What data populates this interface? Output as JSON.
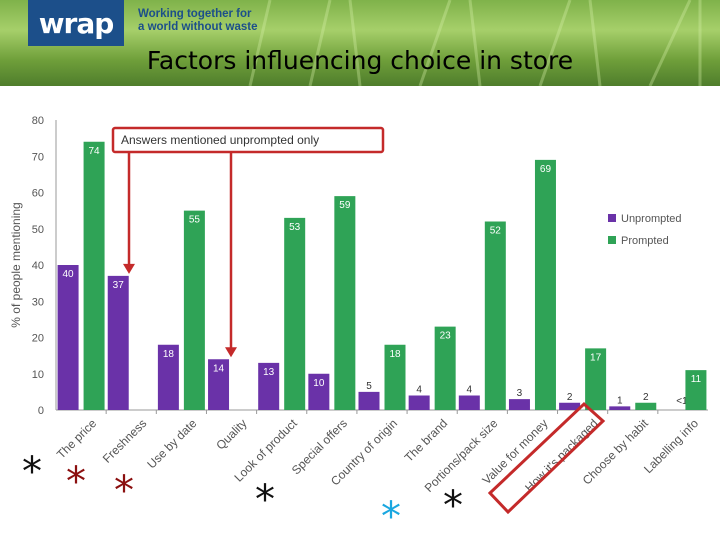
{
  "header": {
    "logo_text": "wrap",
    "tagline_line1": "Working together for",
    "tagline_line2": "a world without waste",
    "slide_title": "Factors influencing choice in store"
  },
  "colors": {
    "unprompted": "#6a32a8",
    "prompted": "#2fa356",
    "annotation_red": "#c42a2a",
    "asterisk_dark": "#111111",
    "asterisk_red": "#8b0f0f",
    "asterisk_cyan": "#1aa7e0",
    "brand_blue": "#1c4f8a"
  },
  "annotation": {
    "callout_text": "Answers mentioned unprompted only"
  },
  "asterisk_glyph": "*",
  "chart_data": {
    "type": "bar",
    "categories": [
      "The price",
      "Freshness",
      "Use by date",
      "Quality",
      "Look of product",
      "Special offers",
      "Country of origin",
      "The brand",
      "Portions/pack size",
      "Value for money",
      "How it's packaged",
      "Choose by habit",
      "Labelling info"
    ],
    "series": [
      {
        "name": "Unprompted",
        "values": [
          40,
          37,
          18,
          14,
          13,
          10,
          5,
          4,
          4,
          3,
          2,
          1,
          null
        ],
        "labels": [
          "40",
          "37",
          "18",
          "14",
          "13",
          "10",
          "5",
          "4",
          "4",
          "3",
          "2",
          "1",
          "<1"
        ]
      },
      {
        "name": "Prompted",
        "values": [
          74,
          null,
          55,
          null,
          53,
          59,
          18,
          23,
          52,
          69,
          17,
          2,
          11
        ],
        "labels": [
          "74",
          "",
          "55",
          "",
          "53",
          "59",
          "18",
          "23",
          "52",
          "69",
          "17",
          "2",
          "11"
        ]
      }
    ],
    "ylabel": "% of people mentioning",
    "ylim": [
      0,
      80
    ],
    "yticks": [
      0,
      10,
      20,
      30,
      40,
      50,
      60,
      70,
      80
    ],
    "legend_position": "right",
    "grid": false
  }
}
